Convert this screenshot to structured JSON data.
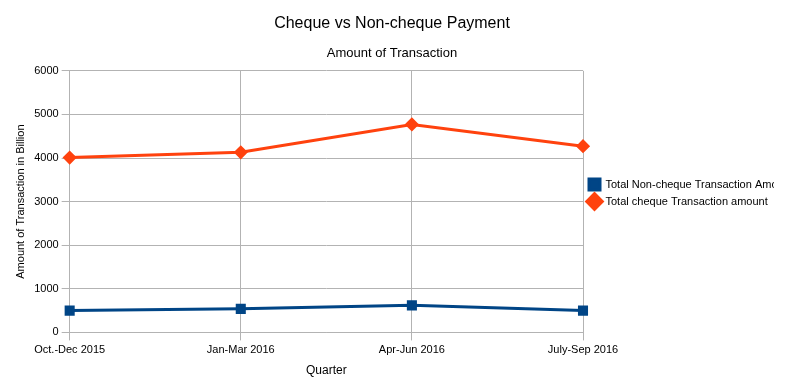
{
  "chart_data": {
    "type": "line",
    "title": "Cheque vs Non-cheque Payment",
    "subtitle": "Amount of Transaction",
    "x_label": "Quarter",
    "y_label": "Amount of Transaction in Billion",
    "categories": [
      "Oct.-Dec 2015",
      "Jan-Mar 2016",
      "Apr-Jun 2016",
      "July-Sep 2016"
    ],
    "series": [
      {
        "name": "Total Non-cheque Transaction Amount",
        "color": "#004586",
        "marker": "square",
        "line_style": "solid",
        "values": [
          500,
          540,
          620,
          500
        ]
      },
      {
        "name": "Total cheque Transaction amount",
        "color": "#ff420e",
        "marker": "diamond",
        "line_style": "solid",
        "values": [
          4010,
          4130,
          4770,
          4270
        ]
      }
    ],
    "ylim": [
      0,
      6000
    ],
    "yticks": [
      0,
      1000,
      2000,
      3000,
      4000,
      5000,
      6000
    ],
    "grid": true,
    "legend": "right"
  }
}
